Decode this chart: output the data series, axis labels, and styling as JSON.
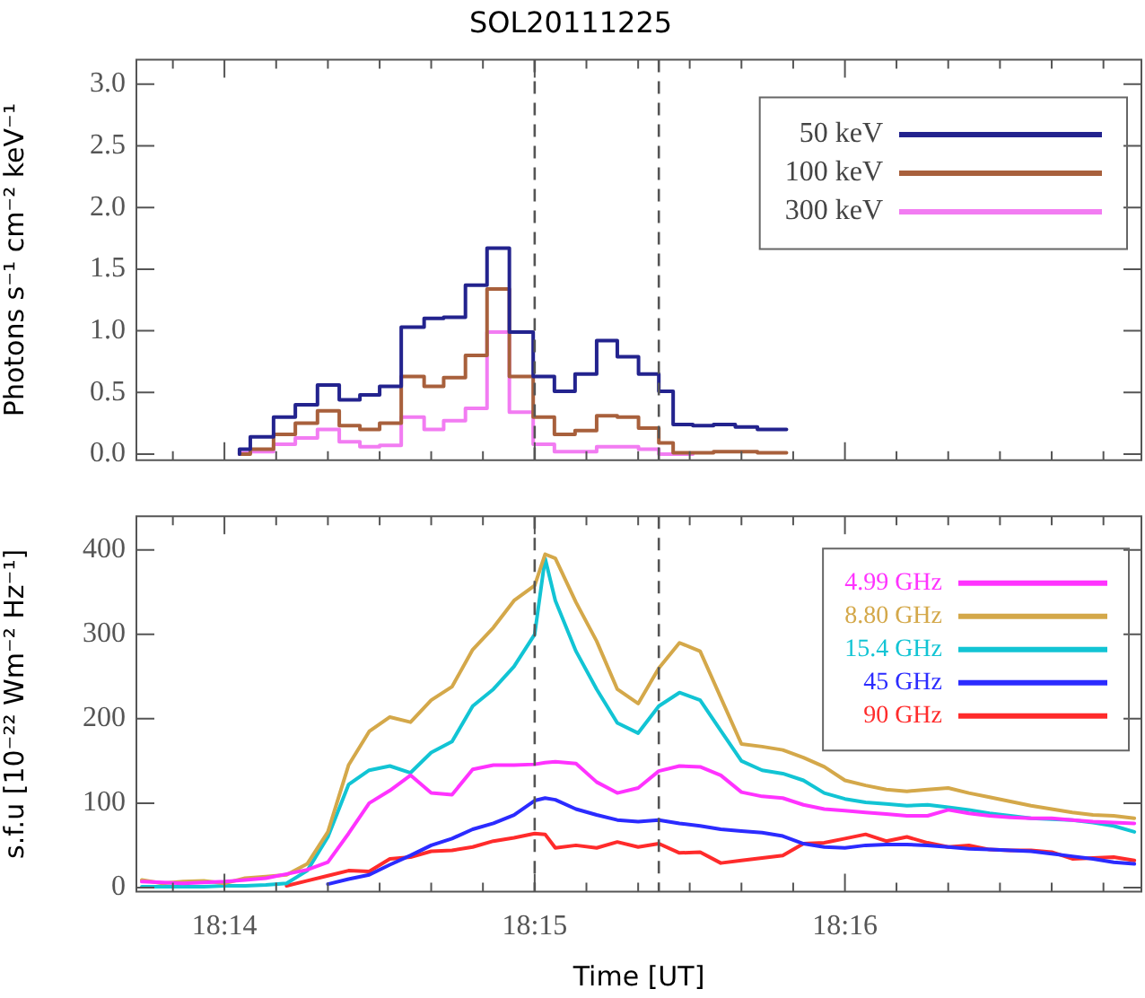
{
  "chart_data": [
    {
      "type": "step",
      "title": "SOL20111225",
      "ylabel": "Photons s⁻¹ cm⁻² keV⁻¹",
      "tick_labels": "y",
      "legend": "top right",
      "marker": "none",
      "line_style": "solid",
      "xlim": [
        18.2286,
        18.2826
      ],
      "xticks": [
        {
          "value": 18.23056,
          "label": null
        },
        18.23333,
        {
          "value": 18.23611,
          "label": null
        },
        {
          "value": 18.23889,
          "label": null
        },
        {
          "value": 18.24167,
          "label": null
        },
        {
          "value": 18.24444,
          "label": null
        },
        {
          "value": 18.24722,
          "label": null
        },
        18.25,
        {
          "value": 18.25278,
          "label": null
        },
        {
          "value": 18.25556,
          "label": null
        },
        {
          "value": 18.25833,
          "label": null
        },
        {
          "value": 18.26111,
          "label": null
        },
        {
          "value": 18.26389,
          "label": null
        },
        18.26667,
        {
          "value": 18.26944,
          "label": null
        },
        {
          "value": 18.27222,
          "label": null
        },
        {
          "value": 18.275,
          "label": null
        },
        {
          "value": 18.27778,
          "label": null
        },
        {
          "value": 18.28056,
          "label": null
        }
      ],
      "ylim": [
        -0.05,
        3.2
      ],
      "yticks": [
        {
          "value": 0,
          "label": "0.0"
        },
        0.5,
        {
          "value": 1,
          "label": "1.0"
        },
        1.5,
        {
          "value": 2,
          "label": "2.0"
        },
        2.5,
        {
          "value": 3,
          "label": "3.0"
        }
      ],
      "x": [
        18.23414,
        18.23472,
        18.23597,
        18.23714,
        18.23833,
        18.2395,
        18.24061,
        18.24167,
        18.24283,
        18.24406,
        18.24511,
        18.24628,
        18.24744,
        18.24864,
        18.24992,
        18.25106,
        18.25217,
        18.25333,
        18.25444,
        18.25558,
        18.25667,
        18.25744,
        18.2585,
        18.25961,
        18.26078,
        18.26197,
        18.26306,
        18.26353
      ],
      "series": [
        {
          "name": "50 keV",
          "color": "#23238e",
          "values": [
            0.0,
            0.04,
            0.14,
            0.3,
            0.4,
            0.56,
            0.44,
            0.48,
            0.55,
            1.03,
            1.1,
            1.11,
            1.37,
            1.67,
            0.99,
            0.63,
            0.51,
            0.65,
            0.92,
            0.79,
            0.65,
            0.51,
            0.24,
            0.23,
            0.24,
            0.22,
            0.2,
            0.2
          ]
        },
        {
          "name": "100 keV",
          "color": "#a8603c",
          "values": [
            0.0,
            0.0,
            0.04,
            0.16,
            0.25,
            0.35,
            0.23,
            0.2,
            0.25,
            0.63,
            0.55,
            0.62,
            0.8,
            1.34,
            0.63,
            0.3,
            0.16,
            0.19,
            0.31,
            0.3,
            0.21,
            0.09,
            0.01,
            0.01,
            0.02,
            0.02,
            0.01,
            0.01
          ]
        },
        {
          "name": "300 keV",
          "color": "#f27cf2",
          "x": [
            18.23414,
            18.23472,
            18.23597,
            18.23714,
            18.23833,
            18.2395,
            18.24061,
            18.24167,
            18.24283,
            18.24406,
            18.24511,
            18.24628,
            18.24744,
            18.24864,
            18.24992,
            18.25106,
            18.25217,
            18.25333,
            18.25444,
            18.25558,
            18.25667,
            18.25744,
            18.2585
          ],
          "values": [
            0.0,
            0.01,
            0.02,
            0.08,
            0.13,
            0.2,
            0.1,
            0.06,
            0.07,
            0.3,
            0.2,
            0.27,
            0.37,
            0.99,
            0.34,
            0.08,
            0.02,
            0.02,
            0.06,
            0.06,
            0.04,
            0.0,
            0.0
          ]
        }
      ],
      "ref_lines": [
        {
          "axis": "x",
          "value": 18.25,
          "color": "#555555",
          "line_style": "dashed"
        },
        {
          "axis": "x",
          "value": 18.25667,
          "color": "#555555",
          "line_style": "dashed"
        }
      ]
    },
    {
      "type": "line",
      "xlabel": "Time [UT]",
      "ylabel": "s.f.u [10⁻²² Wm⁻² Hz⁻¹]",
      "legend": "top right",
      "marker": "none",
      "line_style": "solid",
      "xlim": [
        18.2286,
        18.2826
      ],
      "xticks": [
        {
          "value": 18.23056,
          "label": null
        },
        {
          "value": 18.23333,
          "label": "18:14"
        },
        {
          "value": 18.23611,
          "label": null
        },
        {
          "value": 18.23889,
          "label": null
        },
        {
          "value": 18.24167,
          "label": null
        },
        {
          "value": 18.24444,
          "label": null
        },
        {
          "value": 18.24722,
          "label": null
        },
        {
          "value": 18.25,
          "label": "18:15"
        },
        {
          "value": 18.25278,
          "label": null
        },
        {
          "value": 18.25556,
          "label": null
        },
        {
          "value": 18.25833,
          "label": null
        },
        {
          "value": 18.26111,
          "label": null
        },
        {
          "value": 18.26389,
          "label": null
        },
        {
          "value": 18.26667,
          "label": "18:16"
        },
        {
          "value": 18.26944,
          "label": null
        },
        {
          "value": 18.27222,
          "label": null
        },
        {
          "value": 18.275,
          "label": null
        },
        {
          "value": 18.27778,
          "label": null
        },
        {
          "value": 18.28056,
          "label": null
        }
      ],
      "ylim": [
        -5,
        440
      ],
      "yticks": [
        0,
        100,
        200,
        300,
        400
      ],
      "x": [
        18.22889,
        18.23,
        18.23111,
        18.23222,
        18.23333,
        18.23444,
        18.23556,
        18.23667,
        18.23778,
        18.23889,
        18.24,
        18.24111,
        18.24222,
        18.24333,
        18.24444,
        18.24556,
        18.24667,
        18.24778,
        18.24889,
        18.25,
        18.25056,
        18.25111,
        18.25222,
        18.25333,
        18.25444,
        18.25556,
        18.25667,
        18.25778,
        18.25889,
        18.26,
        18.26111,
        18.26222,
        18.26333,
        18.26444,
        18.26556,
        18.26667,
        18.26778,
        18.26889,
        18.27,
        18.27111,
        18.27222,
        18.27333,
        18.27444,
        18.27556,
        18.27667,
        18.27778,
        18.27889,
        18.28,
        18.28111,
        18.28222
      ],
      "series": [
        {
          "name": "4.99 GHz",
          "color": "#ff33ff",
          "values": [
            7,
            6,
            5,
            6,
            7,
            9,
            11,
            16,
            21,
            30,
            64,
            100,
            115,
            133,
            112,
            110,
            140,
            145,
            145,
            146,
            148,
            149,
            147,
            125,
            112,
            118,
            138,
            144,
            143,
            133,
            113,
            108,
            106,
            98,
            93,
            91,
            89,
            87,
            85,
            85,
            92,
            88,
            85,
            83,
            82,
            82,
            80,
            78,
            77,
            76
          ]
        },
        {
          "name": "8.80 GHz",
          "color": "#d4a84a",
          "values": [
            9,
            5,
            7,
            8,
            5,
            11,
            13,
            15,
            28,
            66,
            145,
            185,
            202,
            196,
            222,
            238,
            282,
            308,
            340,
            358,
            395,
            390,
            338,
            292,
            235,
            218,
            260,
            290,
            280,
            225,
            170,
            167,
            163,
            154,
            143,
            127,
            121,
            116,
            114,
            116,
            118,
            112,
            107,
            102,
            97,
            93,
            89,
            86,
            85,
            82
          ]
        },
        {
          "name": "15.4 GHz",
          "color": "#12c4d4",
          "values": [
            1,
            1,
            1,
            1,
            2,
            2,
            3,
            5,
            20,
            60,
            122,
            139,
            144,
            136,
            160,
            173,
            215,
            235,
            262,
            300,
            390,
            340,
            280,
            235,
            195,
            183,
            215,
            231,
            222,
            186,
            150,
            139,
            135,
            127,
            112,
            105,
            101,
            99,
            97,
            98,
            95,
            92,
            88,
            85,
            82,
            81,
            80,
            77,
            73,
            66
          ]
        },
        {
          "name": "45 GHz",
          "color": "#2b2bff",
          "values": [
            null,
            null,
            null,
            null,
            null,
            null,
            null,
            null,
            null,
            4,
            10,
            15,
            27,
            38,
            50,
            58,
            69,
            76,
            86,
            103,
            106,
            104,
            93,
            86,
            80,
            78,
            80,
            76,
            73,
            69,
            67,
            65,
            61,
            52,
            48,
            47,
            50,
            51,
            51,
            50,
            48,
            46,
            45,
            44,
            43,
            40,
            37,
            34,
            30,
            28
          ]
        },
        {
          "name": "90 GHz",
          "color": "#ff2b2b",
          "values": [
            null,
            null,
            null,
            null,
            null,
            null,
            null,
            2,
            8,
            14,
            20,
            19,
            34,
            36,
            43,
            44,
            48,
            55,
            59,
            64,
            63,
            47,
            50,
            47,
            54,
            48,
            52,
            41,
            42,
            29,
            32,
            35,
            38,
            52,
            53,
            58,
            63,
            55,
            60,
            53,
            48,
            50,
            45,
            44,
            44,
            42,
            34,
            35,
            36,
            32
          ]
        }
      ],
      "ref_lines": [
        {
          "axis": "x",
          "value": 18.25,
          "color": "#555555",
          "line_style": "dashed"
        },
        {
          "axis": "x",
          "value": 18.25667,
          "color": "#555555",
          "line_style": "dashed"
        }
      ]
    }
  ]
}
